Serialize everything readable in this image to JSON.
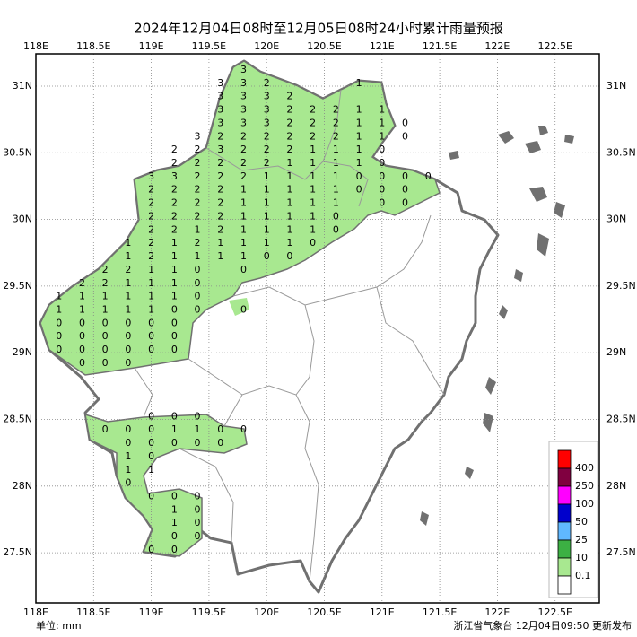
{
  "map": {
    "title": "2024年12月04日08时至12月05日08时24小时累计雨量预报",
    "lon_ticks": [
      {
        "value": 118,
        "label": "118E"
      },
      {
        "value": 118.5,
        "label": "118.5E"
      },
      {
        "value": 119,
        "label": "119E"
      },
      {
        "value": 119.5,
        "label": "119.5E"
      },
      {
        "value": 120,
        "label": "120E"
      },
      {
        "value": 120.5,
        "label": "120.5E"
      },
      {
        "value": 121,
        "label": "121E"
      },
      {
        "value": 121.5,
        "label": "121.5E"
      },
      {
        "value": 122,
        "label": "122E"
      },
      {
        "value": 122.5,
        "label": "122.5E"
      }
    ],
    "lat_ticks": [
      {
        "value": 27.5,
        "label": "27.5N"
      },
      {
        "value": 28,
        "label": "28N"
      },
      {
        "value": 28.5,
        "label": "28.5N"
      },
      {
        "value": 29,
        "label": "29N"
      },
      {
        "value": 29.5,
        "label": "29.5N"
      },
      {
        "value": 30,
        "label": "30N"
      },
      {
        "value": 30.5,
        "label": "30.5N"
      },
      {
        "value": 31,
        "label": "31N"
      }
    ],
    "unit": "单位: mm",
    "footer": "浙江省气象台 12月04日09:50 更新发布",
    "legend": {
      "thresholds": [
        400,
        250,
        100,
        50,
        25,
        10,
        0.1
      ],
      "colors": [
        "#ff0000",
        "#800040",
        "#ff00ff",
        "#0000cc",
        "#60b8ff",
        "#3cb043",
        "#a8e890",
        "#ffffff"
      ]
    },
    "grid": [
      [
        null,
        null,
        null,
        null,
        null,
        null,
        null,
        null,
        null,
        3,
        null,
        null,
        null,
        null,
        null,
        null,
        null,
        null
      ],
      [
        null,
        null,
        null,
        null,
        null,
        null,
        null,
        null,
        3,
        3,
        2,
        null,
        null,
        null,
        1,
        null,
        null,
        null
      ],
      [
        null,
        null,
        null,
        null,
        null,
        null,
        null,
        null,
        3,
        3,
        3,
        2,
        null,
        null,
        null,
        null,
        null,
        null
      ],
      [
        null,
        null,
        null,
        null,
        null,
        null,
        null,
        null,
        3,
        3,
        3,
        2,
        2,
        2,
        1,
        1,
        null,
        null
      ],
      [
        null,
        null,
        null,
        null,
        null,
        null,
        null,
        null,
        3,
        3,
        3,
        2,
        2,
        2,
        1,
        1,
        0,
        null
      ],
      [
        null,
        null,
        null,
        null,
        null,
        null,
        null,
        3,
        2,
        2,
        2,
        2,
        2,
        2,
        1,
        1,
        0,
        null
      ],
      [
        null,
        null,
        null,
        null,
        null,
        null,
        2,
        2,
        3,
        2,
        2,
        2,
        1,
        1,
        1,
        0,
        null,
        null
      ],
      [
        null,
        null,
        null,
        null,
        null,
        null,
        2,
        2,
        2,
        2,
        2,
        1,
        1,
        1,
        1,
        0,
        null,
        null
      ],
      [
        null,
        null,
        null,
        null,
        null,
        3,
        3,
        2,
        2,
        2,
        1,
        1,
        1,
        1,
        0,
        0,
        0,
        0
      ],
      [
        null,
        null,
        null,
        null,
        null,
        2,
        2,
        2,
        2,
        1,
        1,
        1,
        1,
        1,
        0,
        0,
        0,
        null
      ],
      [
        null,
        null,
        null,
        null,
        null,
        2,
        2,
        2,
        2,
        1,
        1,
        1,
        1,
        1,
        null,
        0,
        0,
        null
      ],
      [
        null,
        null,
        null,
        null,
        null,
        2,
        2,
        2,
        2,
        1,
        1,
        1,
        1,
        0,
        null,
        null,
        null,
        null
      ],
      [
        null,
        null,
        null,
        null,
        null,
        2,
        2,
        1,
        2,
        1,
        1,
        1,
        1,
        0,
        null,
        null,
        null,
        null
      ],
      [
        null,
        null,
        null,
        null,
        1,
        2,
        1,
        2,
        1,
        1,
        1,
        1,
        0,
        null,
        null,
        null,
        null,
        null
      ],
      [
        null,
        null,
        null,
        null,
        1,
        2,
        1,
        1,
        1,
        1,
        0,
        0,
        null,
        null,
        null,
        null,
        null,
        null
      ],
      [
        null,
        null,
        null,
        2,
        2,
        1,
        1,
        0,
        null,
        0,
        null,
        null,
        null,
        null,
        null,
        null,
        null,
        null
      ],
      [
        null,
        null,
        2,
        2,
        1,
        1,
        1,
        0,
        null,
        null,
        null,
        null,
        null,
        null,
        null,
        null,
        null,
        null
      ],
      [
        null,
        1,
        1,
        1,
        1,
        1,
        1,
        0,
        null,
        null,
        null,
        null,
        null,
        null,
        null,
        null,
        null,
        null
      ],
      [
        null,
        1,
        1,
        1,
        1,
        1,
        0,
        0,
        null,
        0,
        null,
        null,
        null,
        null,
        null,
        null,
        null,
        null
      ],
      [
        null,
        0,
        0,
        0,
        0,
        0,
        0,
        null,
        null,
        null,
        null,
        null,
        null,
        null,
        null,
        null,
        null,
        null
      ],
      [
        null,
        0,
        0,
        0,
        0,
        0,
        0,
        null,
        null,
        null,
        null,
        null,
        null,
        null,
        null,
        null,
        null,
        null
      ],
      [
        null,
        0,
        0,
        0,
        0,
        0,
        0,
        null,
        null,
        null,
        null,
        null,
        null,
        null,
        null,
        null,
        null,
        null
      ],
      [
        null,
        null,
        0,
        0,
        0,
        null,
        null,
        null,
        null,
        null,
        null,
        null,
        null,
        null,
        null,
        null,
        null,
        null
      ],
      [
        null,
        null,
        null,
        null,
        null,
        null,
        null,
        null,
        null,
        null,
        null,
        null,
        null,
        null,
        null,
        null,
        null,
        null
      ],
      [
        null,
        null,
        null,
        null,
        null,
        null,
        null,
        null,
        null,
        null,
        null,
        null,
        null,
        null,
        null,
        null,
        null,
        null
      ],
      [
        null,
        null,
        null,
        null,
        null,
        null,
        null,
        null,
        null,
        null,
        null,
        null,
        null,
        null,
        null,
        null,
        null,
        null
      ],
      [
        null,
        null,
        null,
        null,
        null,
        0,
        0,
        0,
        null,
        null,
        null,
        null,
        null,
        null,
        null,
        null,
        null,
        null
      ],
      [
        null,
        null,
        null,
        0,
        0,
        0,
        1,
        1,
        0,
        0,
        null,
        null,
        null,
        null,
        null,
        null,
        null,
        null
      ],
      [
        null,
        null,
        null,
        null,
        0,
        0,
        0,
        0,
        0,
        null,
        null,
        null,
        null,
        null,
        null,
        null,
        null,
        null
      ],
      [
        null,
        null,
        null,
        null,
        1,
        0,
        null,
        null,
        null,
        null,
        null,
        null,
        null,
        null,
        null,
        null,
        null,
        null
      ],
      [
        null,
        null,
        null,
        null,
        1,
        1,
        null,
        null,
        null,
        null,
        null,
        null,
        null,
        null,
        null,
        null,
        null,
        null
      ],
      [
        null,
        null,
        null,
        null,
        0,
        null,
        null,
        null,
        null,
        null,
        null,
        null,
        null,
        null,
        null,
        null,
        null,
        null
      ],
      [
        null,
        null,
        null,
        null,
        null,
        0,
        0,
        0,
        null,
        null,
        null,
        null,
        null,
        null,
        null,
        null,
        null,
        null
      ],
      [
        null,
        null,
        null,
        null,
        null,
        null,
        1,
        0,
        null,
        null,
        null,
        null,
        null,
        null,
        null,
        null,
        null,
        null
      ],
      [
        null,
        null,
        null,
        null,
        null,
        null,
        1,
        0,
        null,
        null,
        null,
        null,
        null,
        null,
        null,
        null,
        null,
        null
      ],
      [
        null,
        null,
        null,
        null,
        null,
        null,
        0,
        0,
        null,
        null,
        null,
        null,
        null,
        null,
        null,
        null,
        null,
        null
      ],
      [
        null,
        null,
        null,
        null,
        null,
        0,
        0,
        null,
        null,
        null,
        null,
        null,
        null,
        null,
        null,
        null,
        null,
        null
      ]
    ]
  }
}
